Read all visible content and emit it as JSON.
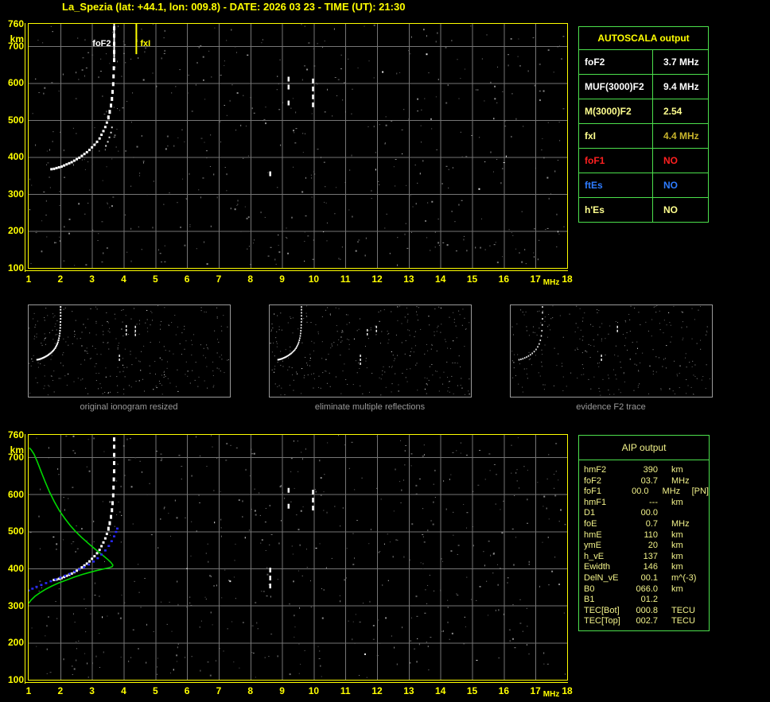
{
  "header": {
    "title": "La_Spezia (lat: +44.1, lon: 009.8) - DATE: 2026 03 23 - TIME (UT): 21:30"
  },
  "autoscala_table": {
    "title": "AUTOSCALA output",
    "border_color": "#4ce04c",
    "rows": [
      {
        "label": "foF2",
        "value": "3.7 MHz",
        "label_color": "#ffffff",
        "value_color": "#ffffff"
      },
      {
        "label": "MUF(3000)F2",
        "value": "9.4 MHz",
        "label_color": "#ffffff",
        "value_color": "#ffffff"
      },
      {
        "label": "M(3000)F2",
        "value": "2.54",
        "label_color": "#ffff8e",
        "value_color": "#ffff8e"
      },
      {
        "label": "fxI",
        "value": "4.4 MHz",
        "label_color": "#ffff8e",
        "value_color": "#c9b42c"
      },
      {
        "label": "foF1",
        "value": "NO",
        "label_color": "#ff2020",
        "value_color": "#ff2020"
      },
      {
        "label": "ftEs",
        "value": "NO",
        "label_color": "#2e7cff",
        "value_color": "#2e7cff"
      },
      {
        "label": "h'Es",
        "value": "NO",
        "label_color": "#ffff8e",
        "value_color": "#ffff8e"
      }
    ]
  },
  "thumbnails": [
    {
      "caption": "original ionogram resized"
    },
    {
      "caption": "eliminate multiple reflections"
    },
    {
      "caption": "evidence F2 trace"
    }
  ],
  "aip_table": {
    "title": "AIP output",
    "rows": [
      {
        "label": "hmF2",
        "value": "390",
        "unit": "km",
        "note": ""
      },
      {
        "label": "foF2",
        "value": "03.7",
        "unit": "MHz",
        "note": ""
      },
      {
        "label": "foF1",
        "value": "00.0",
        "unit": "MHz",
        "note": "[PN]"
      },
      {
        "label": "hmF1",
        "value": "---",
        "unit": "km",
        "note": ""
      },
      {
        "label": "D1",
        "value": "00.0",
        "unit": "",
        "note": ""
      },
      {
        "label": "foE",
        "value": "0.7",
        "unit": "MHz",
        "note": ""
      },
      {
        "label": "hmE",
        "value": "110",
        "unit": "km",
        "note": ""
      },
      {
        "label": "ymE",
        "value": "20",
        "unit": "km",
        "note": ""
      },
      {
        "label": "h_vE",
        "value": "137",
        "unit": "km",
        "note": ""
      },
      {
        "label": "Ewidth",
        "value": "146",
        "unit": "km",
        "note": ""
      },
      {
        "label": "DelN_vE",
        "value": "00.1",
        "unit": "m^(-3)",
        "note": ""
      },
      {
        "label": "B0",
        "value": "066.0",
        "unit": "km",
        "note": ""
      },
      {
        "label": "B1",
        "value": "01.2",
        "unit": "",
        "note": ""
      },
      {
        "label": "TEC[Bot]",
        "value": "000.8",
        "unit": "TECU",
        "note": ""
      },
      {
        "label": "TEC[Top]",
        "value": "002.7",
        "unit": "TECU",
        "note": ""
      }
    ]
  },
  "chart_data": [
    {
      "id": "ionogram_autoscaled",
      "type": "scatter",
      "title": "",
      "xlabel": "MHz",
      "ylabel": "km",
      "xlim": [
        1,
        18
      ],
      "ylim": [
        100,
        760
      ],
      "grid": true,
      "x_ticks": [
        1,
        2,
        3,
        4,
        5,
        6,
        7,
        8,
        9,
        10,
        11,
        12,
        13,
        14,
        15,
        16,
        17,
        18
      ],
      "y_ticks": [
        760,
        700,
        600,
        500,
        400,
        300,
        200,
        100
      ],
      "f2_trace": [
        [
          1.72,
          367
        ],
        [
          1.8,
          368
        ],
        [
          1.88,
          370
        ],
        [
          1.96,
          372
        ],
        [
          2.04,
          374
        ],
        [
          2.12,
          377
        ],
        [
          2.2,
          380
        ],
        [
          2.28,
          383
        ],
        [
          2.36,
          386
        ],
        [
          2.44,
          390
        ],
        [
          2.52,
          394
        ],
        [
          2.6,
          398
        ],
        [
          2.68,
          403
        ],
        [
          2.76,
          408
        ],
        [
          2.84,
          413
        ],
        [
          2.92,
          419
        ],
        [
          3.0,
          426
        ],
        [
          3.08,
          433
        ],
        [
          3.16,
          441
        ],
        [
          3.24,
          450
        ],
        [
          3.3,
          460
        ],
        [
          3.36,
          470
        ],
        [
          3.42,
          481
        ],
        [
          3.47,
          493
        ],
        [
          3.52,
          507
        ],
        [
          3.56,
          522
        ],
        [
          3.6,
          539
        ],
        [
          3.63,
          557
        ],
        [
          3.65,
          576
        ],
        [
          3.67,
          597
        ],
        [
          3.68,
          618
        ],
        [
          3.69,
          640
        ],
        [
          3.7,
          662
        ],
        [
          3.7,
          684
        ],
        [
          3.7,
          706
        ],
        [
          3.7,
          728
        ],
        [
          3.7,
          748
        ]
      ],
      "second_trace": [
        [
          3.44,
          430
        ],
        [
          3.5,
          441
        ],
        [
          3.55,
          453
        ],
        [
          3.6,
          466
        ],
        [
          3.63,
          480
        ]
      ],
      "echo_segments": [
        {
          "freq": 8.62,
          "km_from": 332,
          "km_to": 404
        },
        {
          "freq": 9.2,
          "km_from": 544,
          "km_to": 617
        },
        {
          "freq": 9.97,
          "km_from": 541,
          "km_to": 612
        }
      ],
      "markers": [
        {
          "label": "foF2",
          "freq": 3.7,
          "color": "#ffffff",
          "line_bottom_km": 668
        },
        {
          "label": "fxI",
          "freq": 4.4,
          "color": "#ffff00",
          "line_bottom_km": 678
        }
      ]
    },
    {
      "id": "ionogram_with_profile",
      "type": "scatter",
      "title": "",
      "xlabel": "MHz",
      "ylabel": "km",
      "xlim": [
        1,
        18
      ],
      "ylim": [
        100,
        760
      ],
      "grid": true,
      "x_ticks": [
        1,
        2,
        3,
        4,
        5,
        6,
        7,
        8,
        9,
        10,
        11,
        12,
        13,
        14,
        15,
        16,
        17,
        18
      ],
      "y_ticks": [
        760,
        700,
        600,
        500,
        400,
        300,
        200,
        100
      ],
      "f2_trace": [
        [
          1.8,
          369
        ],
        [
          1.88,
          370
        ],
        [
          1.96,
          372
        ],
        [
          2.04,
          374
        ],
        [
          2.12,
          377
        ],
        [
          2.2,
          380
        ],
        [
          2.28,
          383
        ],
        [
          2.36,
          386
        ],
        [
          2.44,
          390
        ],
        [
          2.52,
          394
        ],
        [
          2.6,
          398
        ],
        [
          2.68,
          403
        ],
        [
          2.76,
          408
        ],
        [
          2.84,
          413
        ],
        [
          2.92,
          419
        ],
        [
          3.0,
          426
        ],
        [
          3.08,
          433
        ],
        [
          3.16,
          441
        ],
        [
          3.24,
          450
        ],
        [
          3.3,
          460
        ],
        [
          3.36,
          470
        ],
        [
          3.42,
          481
        ],
        [
          3.47,
          493
        ],
        [
          3.52,
          507
        ],
        [
          3.56,
          522
        ],
        [
          3.6,
          539
        ],
        [
          3.63,
          557
        ],
        [
          3.65,
          576
        ],
        [
          3.67,
          597
        ],
        [
          3.68,
          618
        ],
        [
          3.69,
          640
        ],
        [
          3.7,
          662
        ],
        [
          3.7,
          684
        ],
        [
          3.7,
          706
        ],
        [
          3.7,
          728
        ],
        [
          3.7,
          748
        ]
      ],
      "echo_segments": [
        {
          "freq": 8.62,
          "km_from": 335,
          "km_to": 402
        },
        {
          "freq": 9.2,
          "km_from": 544,
          "km_to": 617
        },
        {
          "freq": 9.97,
          "km_from": 541,
          "km_to": 612
        }
      ],
      "green_profile_color": "#00d800",
      "green_profile": [
        [
          1.0,
          306
        ],
        [
          1.08,
          315
        ],
        [
          1.2,
          325
        ],
        [
          1.35,
          334
        ],
        [
          1.52,
          343
        ],
        [
          1.72,
          352
        ],
        [
          1.95,
          361
        ],
        [
          2.2,
          369
        ],
        [
          2.45,
          377
        ],
        [
          2.7,
          384
        ],
        [
          2.95,
          390
        ],
        [
          3.18,
          395
        ],
        [
          3.38,
          399
        ],
        [
          3.54,
          402
        ],
        [
          3.64,
          405
        ],
        [
          3.66,
          409
        ],
        [
          3.6,
          416
        ],
        [
          3.5,
          424
        ],
        [
          3.36,
          434
        ],
        [
          3.2,
          445
        ],
        [
          3.03,
          457
        ],
        [
          2.85,
          470
        ],
        [
          2.67,
          484
        ],
        [
          2.49,
          499
        ],
        [
          2.31,
          516
        ],
        [
          2.14,
          535
        ],
        [
          1.97,
          556
        ],
        [
          1.81,
          580
        ],
        [
          1.66,
          606
        ],
        [
          1.52,
          634
        ],
        [
          1.39,
          662
        ],
        [
          1.27,
          688
        ],
        [
          1.17,
          708
        ],
        [
          1.08,
          720
        ],
        [
          1.02,
          725
        ]
      ],
      "blue_restored_color": "#2a2aff",
      "blue_restored_trace": [
        [
          1.0,
          341
        ],
        [
          1.12,
          346
        ],
        [
          1.25,
          351
        ],
        [
          1.4,
          356
        ],
        [
          1.55,
          361
        ],
        [
          1.7,
          366
        ],
        [
          1.85,
          371
        ],
        [
          2.0,
          376
        ],
        [
          2.15,
          381
        ],
        [
          2.3,
          386
        ],
        [
          2.45,
          392
        ],
        [
          2.6,
          398
        ],
        [
          2.75,
          404
        ],
        [
          2.9,
          411
        ],
        [
          3.05,
          419
        ],
        [
          3.18,
          428
        ],
        [
          3.3,
          438
        ],
        [
          3.42,
          449
        ],
        [
          3.53,
          461
        ],
        [
          3.62,
          474
        ],
        [
          3.7,
          487
        ],
        [
          3.76,
          499
        ],
        [
          3.8,
          508
        ]
      ]
    }
  ]
}
